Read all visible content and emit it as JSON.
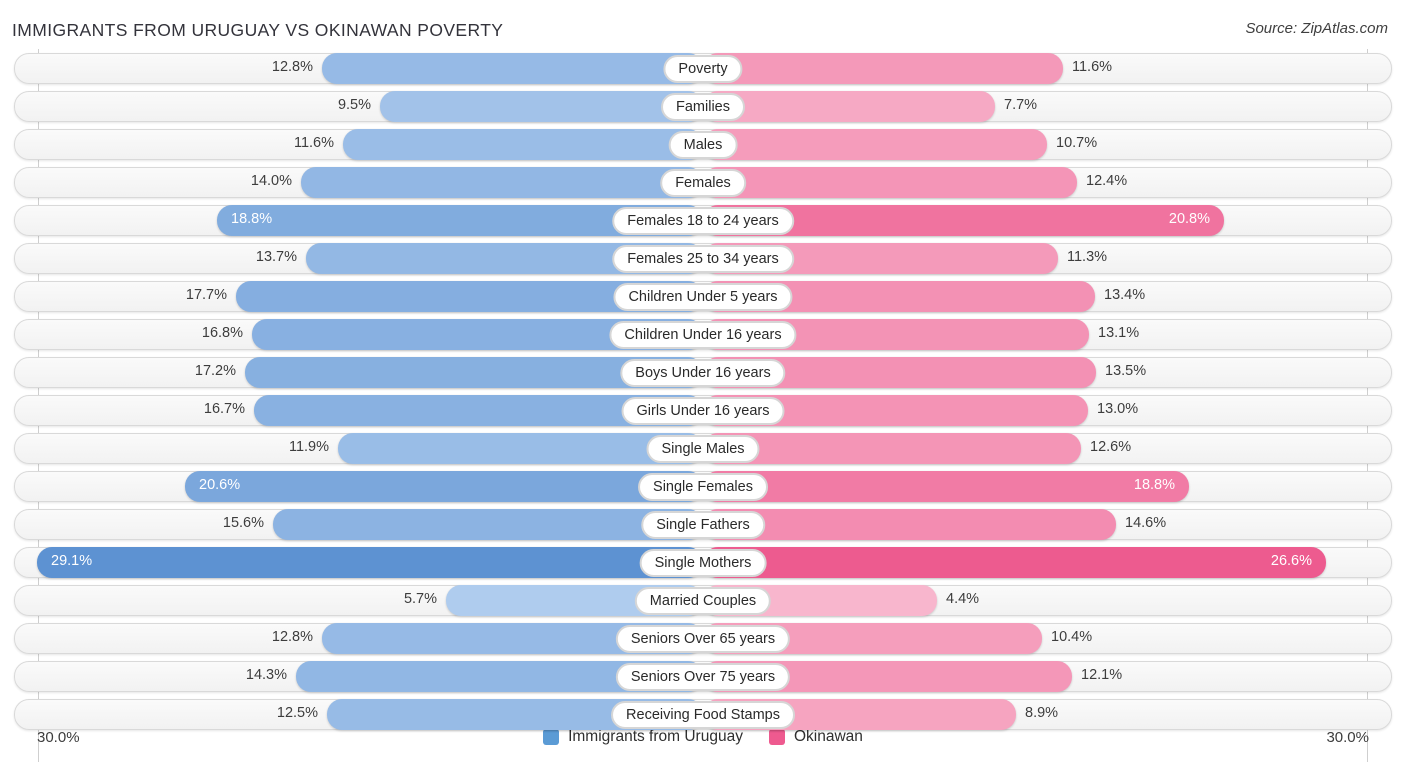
{
  "header": {
    "title": "IMMIGRANTS FROM URUGUAY VS OKINAWAN POVERTY",
    "source": "Source: ZipAtlas.com"
  },
  "axis": {
    "left_label": "30.0%",
    "right_label": "30.0%",
    "max": 30.0
  },
  "colors": {
    "legend_blue": "#5b9bd5",
    "legend_pink": "#ee5a8f",
    "blue_light": "#b5d0f0",
    "blue_dark": "#5a90d1",
    "pink_light": "#f8b8ce",
    "pink_dark": "#eb4d86"
  },
  "chart_data": {
    "type": "bar",
    "orientation": "diverging-horizontal",
    "title": "IMMIGRANTS FROM URUGUAY VS OKINAWAN POVERTY",
    "xlim_left": 30.0,
    "xlim_right": 30.0,
    "legend_position": "bottom",
    "categories": [
      "Poverty",
      "Families",
      "Males",
      "Females",
      "Females 18 to 24 years",
      "Females 25 to 34 years",
      "Children Under 5 years",
      "Children Under 16 years",
      "Boys Under 16 years",
      "Girls Under 16 years",
      "Single Males",
      "Single Females",
      "Single Fathers",
      "Single Mothers",
      "Married Couples",
      "Seniors Over 65 years",
      "Seniors Over 75 years",
      "Receiving Food Stamps"
    ],
    "series": [
      {
        "name": "Immigrants from Uruguay",
        "values": [
          12.8,
          9.5,
          11.6,
          14.0,
          18.8,
          13.7,
          17.7,
          16.8,
          17.2,
          16.7,
          11.9,
          20.6,
          15.6,
          29.1,
          5.7,
          12.8,
          14.3,
          12.5
        ]
      },
      {
        "name": "Okinawan",
        "values": [
          11.6,
          7.7,
          10.7,
          12.4,
          20.8,
          11.3,
          13.4,
          13.1,
          13.5,
          13.0,
          12.6,
          18.8,
          14.6,
          26.6,
          4.4,
          10.4,
          12.1,
          8.9
        ]
      }
    ]
  }
}
